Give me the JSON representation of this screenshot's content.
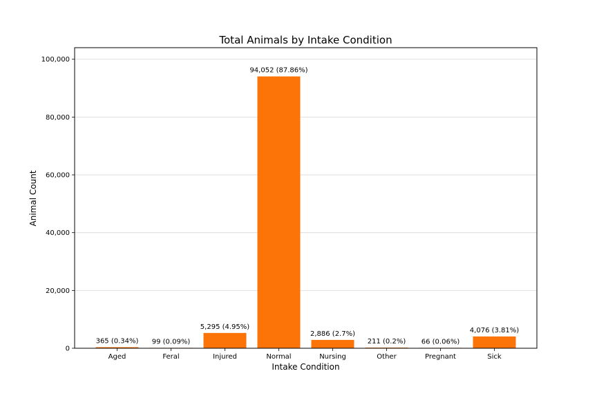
{
  "chart_data": {
    "type": "bar",
    "title": "Total Animals by Intake Condition",
    "xlabel": "Intake Condition",
    "ylabel": "Animal Count",
    "categories": [
      "Aged",
      "Feral",
      "Injured",
      "Normal",
      "Nursing",
      "Other",
      "Pregnant",
      "Sick"
    ],
    "values": [
      365,
      99,
      5295,
      94052,
      2886,
      211,
      66,
      4076
    ],
    "data_labels": [
      "365 (0.34%)",
      "99 (0.09%)",
      "5,295 (4.95%)",
      "94,052 (87.86%)",
      "2,886 (2.7%)",
      "211 (0.2%)",
      "66 (0.06%)",
      "4,076 (3.81%)"
    ],
    "yticks": [
      0,
      20000,
      40000,
      60000,
      80000,
      100000
    ],
    "ytick_labels": [
      "0",
      "20,000",
      "40,000",
      "60,000",
      "80,000",
      "100,000"
    ],
    "ylim": [
      0,
      104000
    ],
    "grid": "horizontal",
    "bar_color": "#fc7307"
  }
}
